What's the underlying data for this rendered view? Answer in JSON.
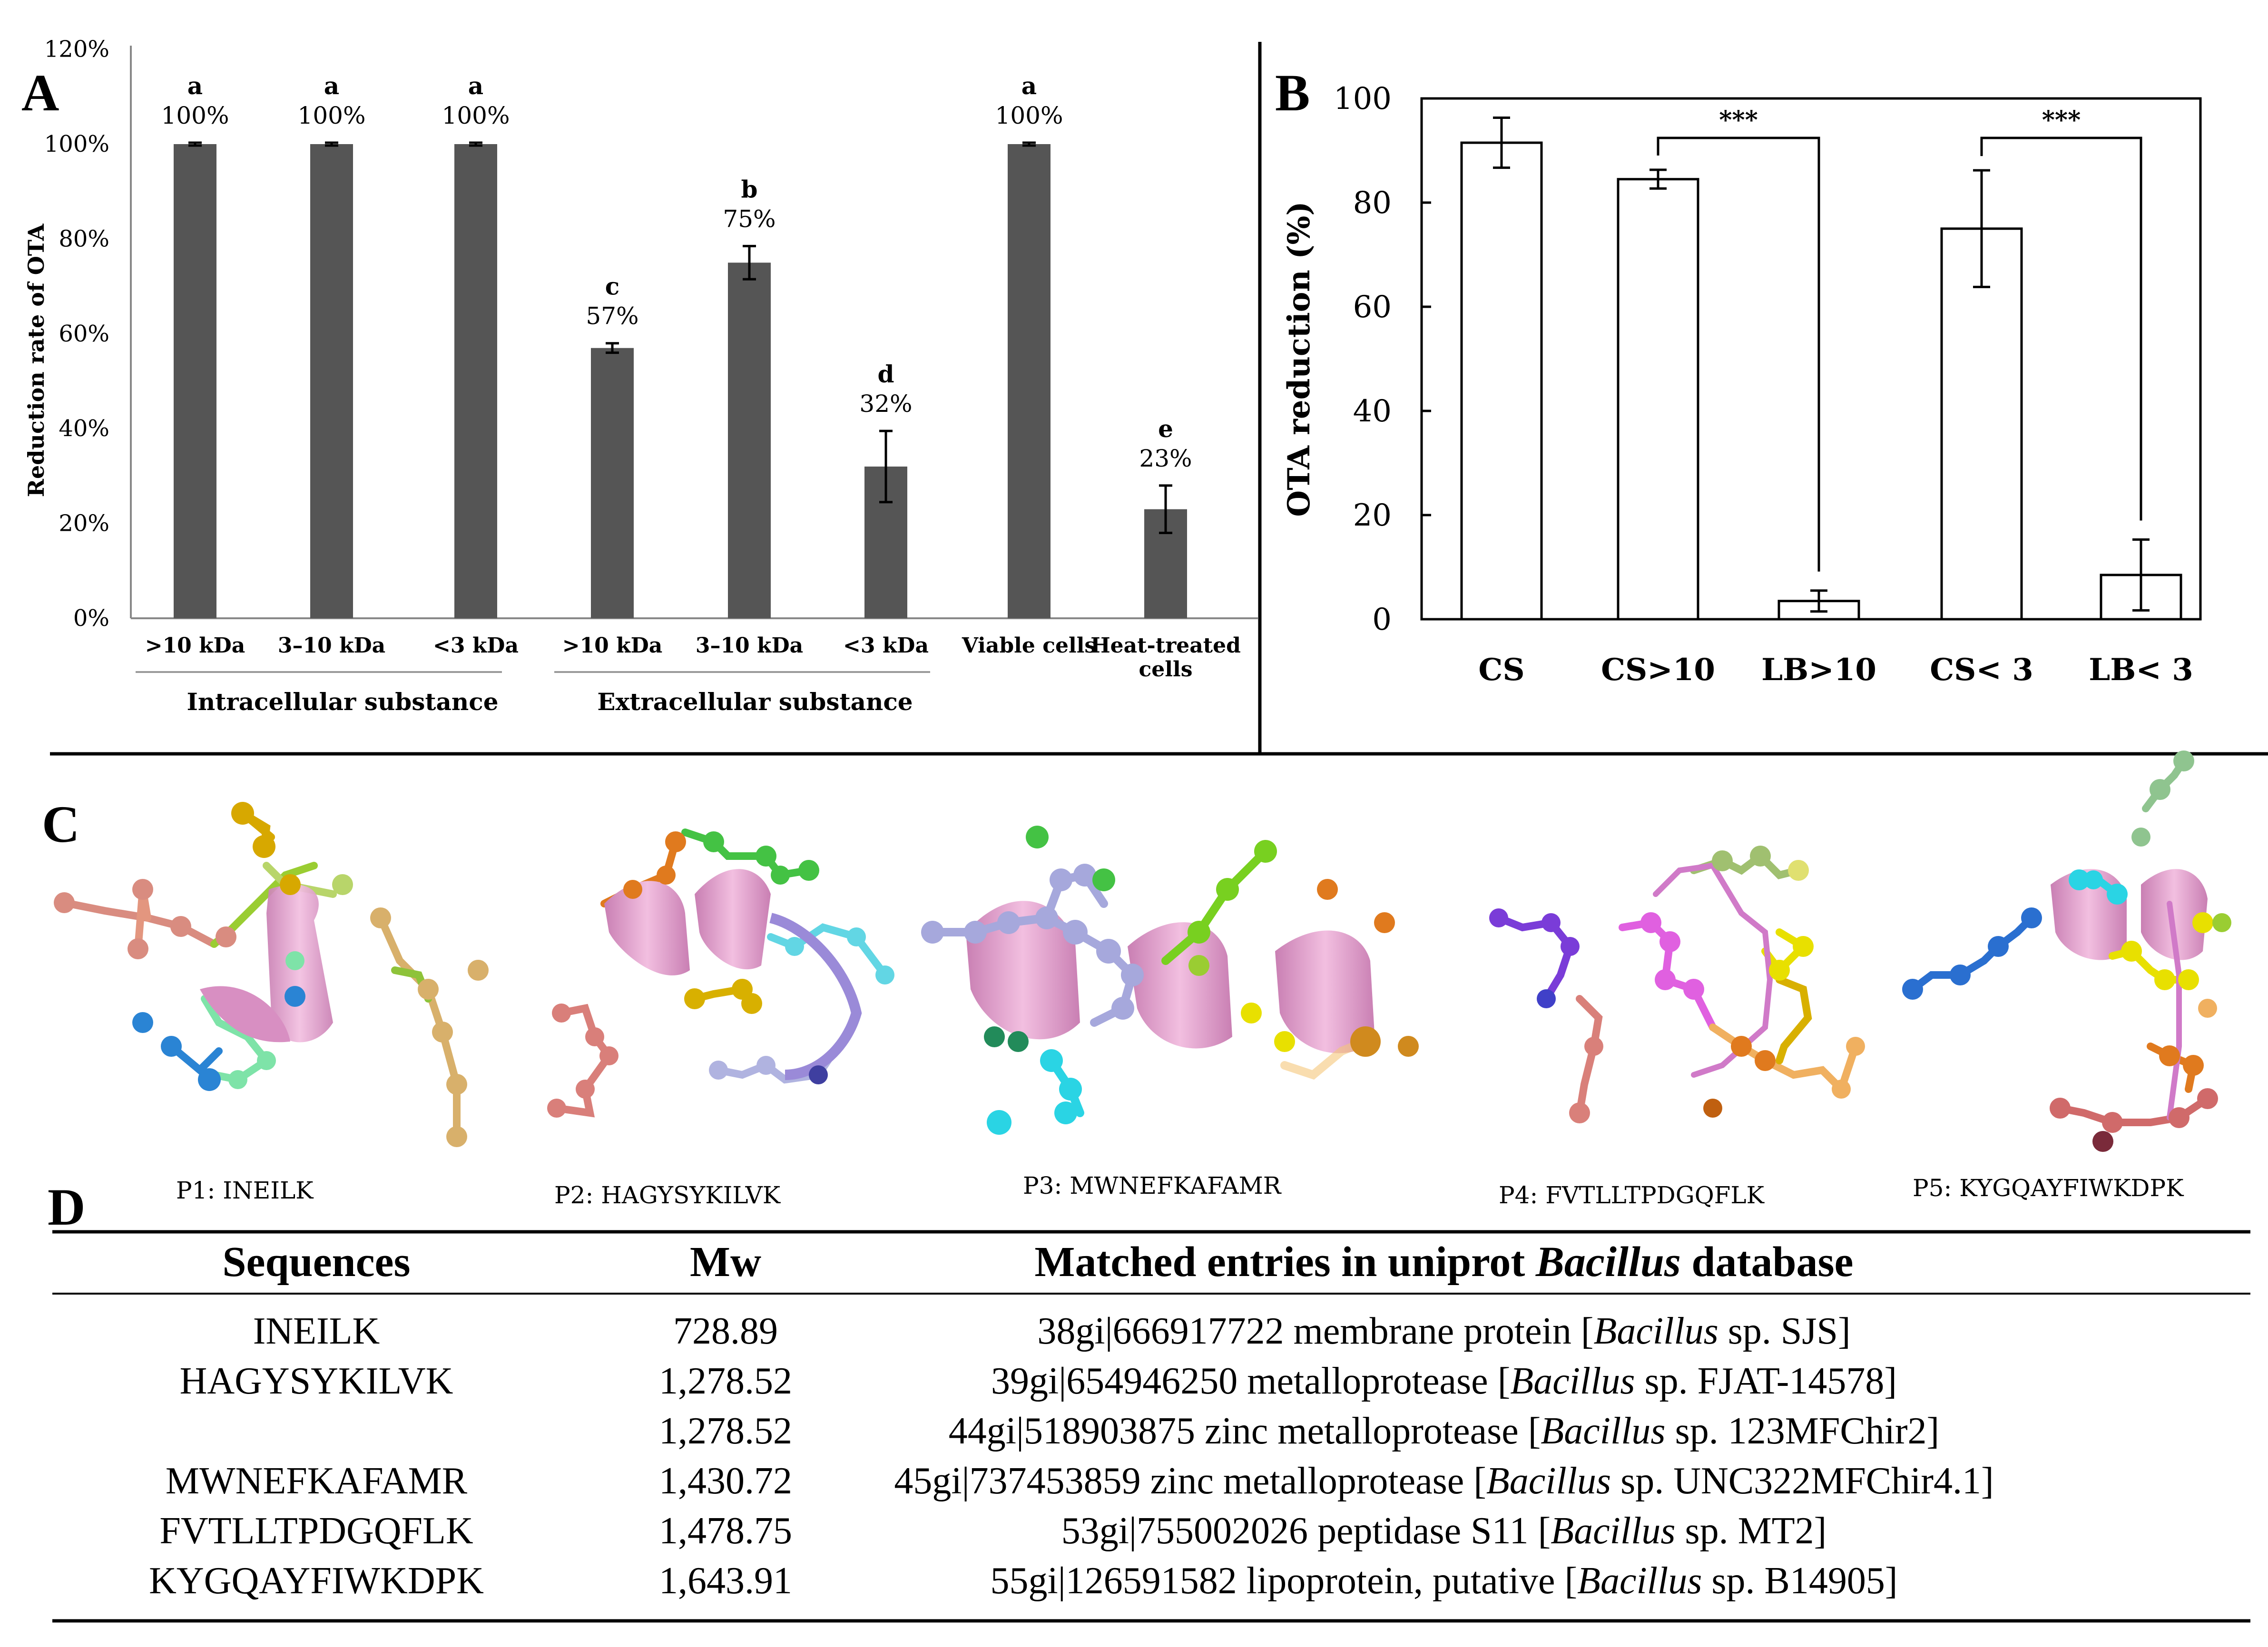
{
  "panel_labels": {
    "a": "A",
    "b": "B",
    "c": "C",
    "d": "D"
  },
  "chart_data": [
    {
      "type": "bar",
      "panel": "A",
      "ylabel": "Reduction rate of OTA",
      "ylim": [
        0,
        120
      ],
      "yticks": [
        "0%",
        "20%",
        "40%",
        "60%",
        "80%",
        "100%",
        "120%"
      ],
      "categories": [
        ">10 kDa",
        "3–10 kDa",
        "<3 kDa",
        ">10 kDa",
        "3–10 kDa",
        "<3 kDa",
        "Viable cells",
        "Heat-treated"
      ],
      "category_line2": [
        "",
        "",
        "",
        "",
        "",
        "",
        "",
        "cells"
      ],
      "values": [
        100,
        100,
        100,
        57,
        75,
        32,
        100,
        23
      ],
      "errors": [
        0.3,
        0.3,
        0.3,
        1.0,
        3.5,
        7.5,
        0.3,
        5.0
      ],
      "value_labels": [
        "100%",
        "100%",
        "100%",
        "57%",
        "75%",
        "32%",
        "100%",
        "23%"
      ],
      "letters": [
        "a",
        "a",
        "a",
        "c",
        "b",
        "d",
        "a",
        "e"
      ],
      "groups": [
        "Intracellular substance",
        "Extracellular substance"
      ],
      "bar_color": "#555555"
    },
    {
      "type": "bar",
      "panel": "B",
      "ylabel": "OTA reduction (%)",
      "ylim": [
        0,
        100
      ],
      "yticks": [
        "0",
        "20",
        "40",
        "60",
        "80",
        "100"
      ],
      "categories": [
        "CS",
        "CS>10",
        "LB>10",
        "CS< 3",
        "LB< 3"
      ],
      "values": [
        91.5,
        84.5,
        3.5,
        75,
        8.5
      ],
      "errors": [
        4.8,
        1.8,
        2.0,
        11.2,
        6.8
      ],
      "significance": [
        "***",
        "***"
      ],
      "bar_color": "#ffffff"
    }
  ],
  "structures": [
    {
      "label": "P1:  INEILK"
    },
    {
      "label": "P2: HAGYSYKILVK"
    },
    {
      "label": "P3:  MWNEFKAFAMR"
    },
    {
      "label": "P4:  FVTLLTPDGQFLK"
    },
    {
      "label": "P5:  KYGQAYFIWKDPK"
    }
  ],
  "table": {
    "headers": {
      "sequences": "Sequences",
      "mw": "Mw",
      "matched_prefix": "Matched entries in uniprot ",
      "matched_italic": "Bacillus",
      "matched_suffix": " database"
    },
    "rows": [
      {
        "seq": "INEILK",
        "mw": "728.89",
        "pre": "38gi|666917722 membrane protein [",
        "genus": "Bacillus",
        "post": " sp. SJS]"
      },
      {
        "seq": "HAGYSYKILVK",
        "mw": "1,278.52",
        "pre": "39gi|654946250 metalloprotease [",
        "genus": "Bacillus",
        "post": " sp. FJAT-14578]"
      },
      {
        "seq": "",
        "mw": "1,278.52",
        "pre": "44gi|518903875 zinc metalloprotease [",
        "genus": "Bacillus",
        "post": " sp. 123MFChir2]"
      },
      {
        "seq": "MWNEFKAFAMR",
        "mw": "1,430.72",
        "pre": "45gi|737453859 zinc metalloprotease [",
        "genus": "Bacillus",
        "post": " sp. UNC322MFChir4.1]"
      },
      {
        "seq": "FVTLLTPDGQFLK",
        "mw": "1,478.75",
        "pre": "53gi|755002026 peptidase S11 [",
        "genus": "Bacillus",
        "post": " sp. MT2]"
      },
      {
        "seq": "KYGQAYFIWKDPK",
        "mw": "1,643.91",
        "pre": "55gi|126591582 lipoprotein, putative [",
        "genus": "Bacillus",
        "post": " sp. B14905]"
      }
    ]
  }
}
